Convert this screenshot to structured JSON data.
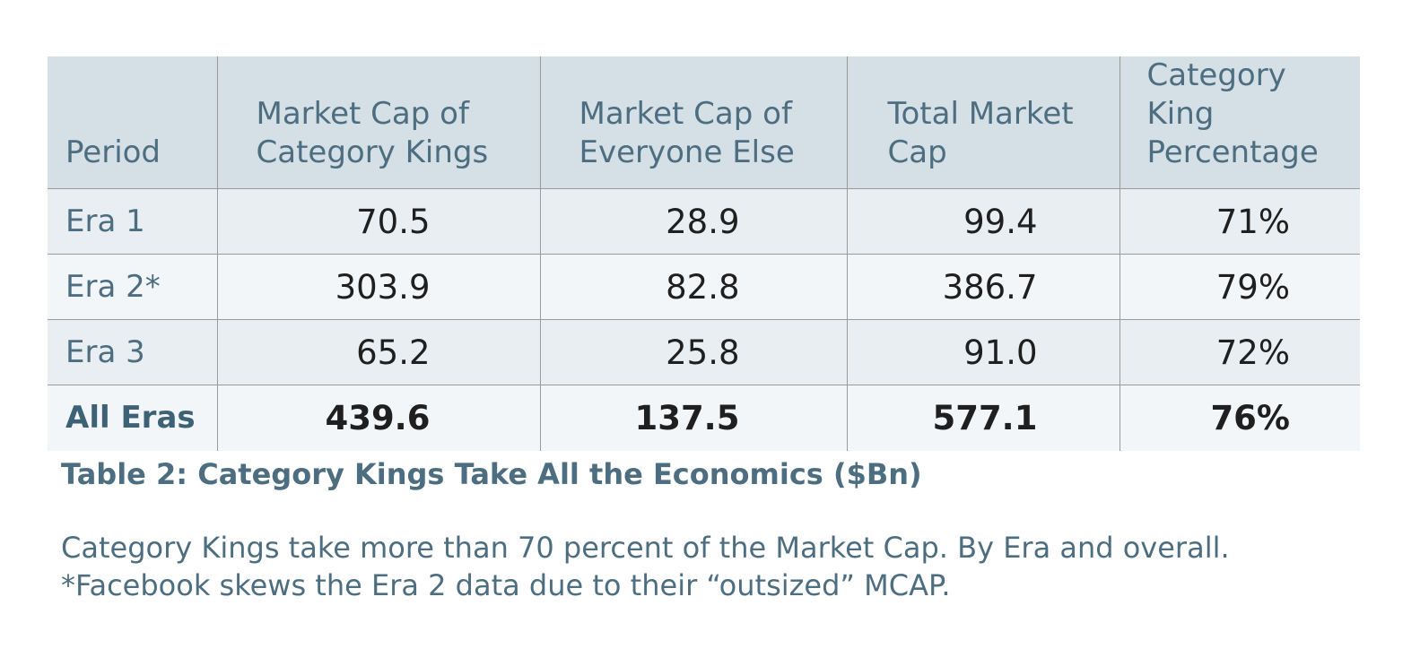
{
  "table": {
    "headers": {
      "period": "Period",
      "kings_line1": "Market Cap of",
      "kings_line2": "Category Kings",
      "else_line1": "Market Cap of",
      "else_line2": "Everyone Else",
      "total_line1": "Total Market",
      "total_line2": "Cap",
      "pct_line1": "Category King",
      "pct_line2": "Percentage"
    },
    "rows": [
      {
        "period": "Era 1",
        "kings": "70.5",
        "else": "28.9",
        "total": "99.4",
        "pct": "71%"
      },
      {
        "period": "Era 2*",
        "kings": "303.9",
        "else": "82.8",
        "total": "386.7",
        "pct": "79%"
      },
      {
        "period": "Era 3",
        "kings": "65.2",
        "else": "25.8",
        "total": "91.0",
        "pct": "72%"
      },
      {
        "period": "All Eras",
        "kings": "439.6",
        "else": "137.5",
        "total": "577.1",
        "pct": "76%"
      }
    ]
  },
  "caption": {
    "title": "Table 2: Category Kings Take All the Economics ($Bn)",
    "line1": "Category Kings take more than 70 percent of the Market Cap. By Era and overall.",
    "line2": "*Facebook skews the Era 2 data due to their “outsized” MCAP."
  },
  "colors": {
    "header_bg": "#d4dfe6",
    "accent_text": "#4d6e80",
    "row_bg_a": "#e8eef2",
    "row_bg_b": "#f3f6f8"
  }
}
